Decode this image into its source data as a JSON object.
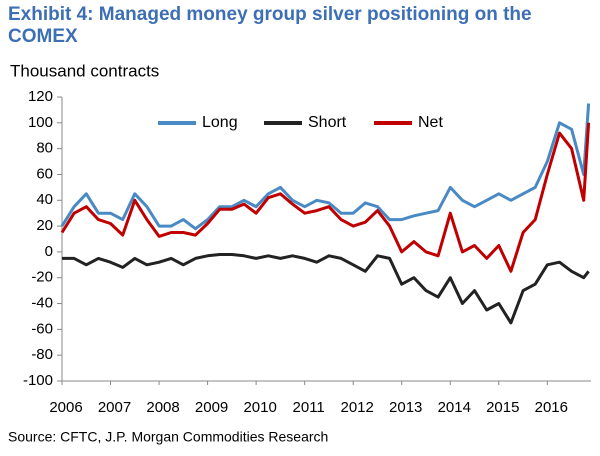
{
  "chart_data": {
    "type": "line",
    "title": "Exhibit 4: Managed money group silver positioning on the COMEX",
    "y_label": "Thousand contracts",
    "source": "Source: CFTC, J.P. Morgan Commodities Research",
    "x": [
      2006,
      2006.25,
      2006.5,
      2006.75,
      2007,
      2007.25,
      2007.5,
      2007.75,
      2008,
      2008.25,
      2008.5,
      2008.75,
      2009,
      2009.25,
      2009.5,
      2009.75,
      2010,
      2010.25,
      2010.5,
      2010.75,
      2011,
      2011.25,
      2011.5,
      2011.75,
      2012,
      2012.25,
      2012.5,
      2012.75,
      2013,
      2013.25,
      2013.5,
      2013.75,
      2014,
      2014.25,
      2014.5,
      2014.75,
      2015,
      2015.25,
      2015.5,
      2015.75,
      2016,
      2016.25,
      2016.5,
      2016.75,
      2016.85
    ],
    "series": [
      {
        "name": "Long",
        "color": "#4a8ac4",
        "values": [
          20,
          35,
          45,
          30,
          30,
          25,
          45,
          35,
          20,
          20,
          25,
          18,
          25,
          35,
          35,
          40,
          35,
          45,
          50,
          40,
          35,
          40,
          38,
          30,
          30,
          38,
          35,
          25,
          25,
          28,
          30,
          32,
          50,
          40,
          35,
          40,
          45,
          40,
          45,
          50,
          70,
          100,
          95,
          60,
          115
        ]
      },
      {
        "name": "Short",
        "color": "#222222",
        "values": [
          -5,
          -5,
          -10,
          -5,
          -8,
          -12,
          -5,
          -10,
          -8,
          -5,
          -10,
          -5,
          -3,
          -2,
          -2,
          -3,
          -5,
          -3,
          -5,
          -3,
          -5,
          -8,
          -3,
          -5,
          -10,
          -15,
          -3,
          -5,
          -25,
          -20,
          -30,
          -35,
          -20,
          -40,
          -30,
          -45,
          -40,
          -55,
          -30,
          -25,
          -10,
          -8,
          -15,
          -20,
          -15
        ]
      },
      {
        "name": "Net",
        "color": "#c00000",
        "values": [
          15,
          30,
          35,
          25,
          22,
          13,
          40,
          25,
          12,
          15,
          15,
          13,
          22,
          33,
          33,
          37,
          30,
          42,
          45,
          37,
          30,
          32,
          35,
          25,
          20,
          23,
          32,
          20,
          0,
          8,
          0,
          -3,
          30,
          0,
          5,
          -5,
          5,
          -15,
          15,
          25,
          60,
          92,
          80,
          40,
          100
        ]
      }
    ],
    "xlim": [
      2006,
      2016.9
    ],
    "xticks": [
      2006,
      2007,
      2008,
      2009,
      2010,
      2011,
      2012,
      2013,
      2014,
      2015,
      2016
    ],
    "ylim": [
      -100,
      120
    ],
    "yticks": [
      -100,
      -80,
      -60,
      -40,
      -20,
      0,
      20,
      40,
      60,
      80,
      100,
      120
    ],
    "legend": "top",
    "grid": false
  }
}
